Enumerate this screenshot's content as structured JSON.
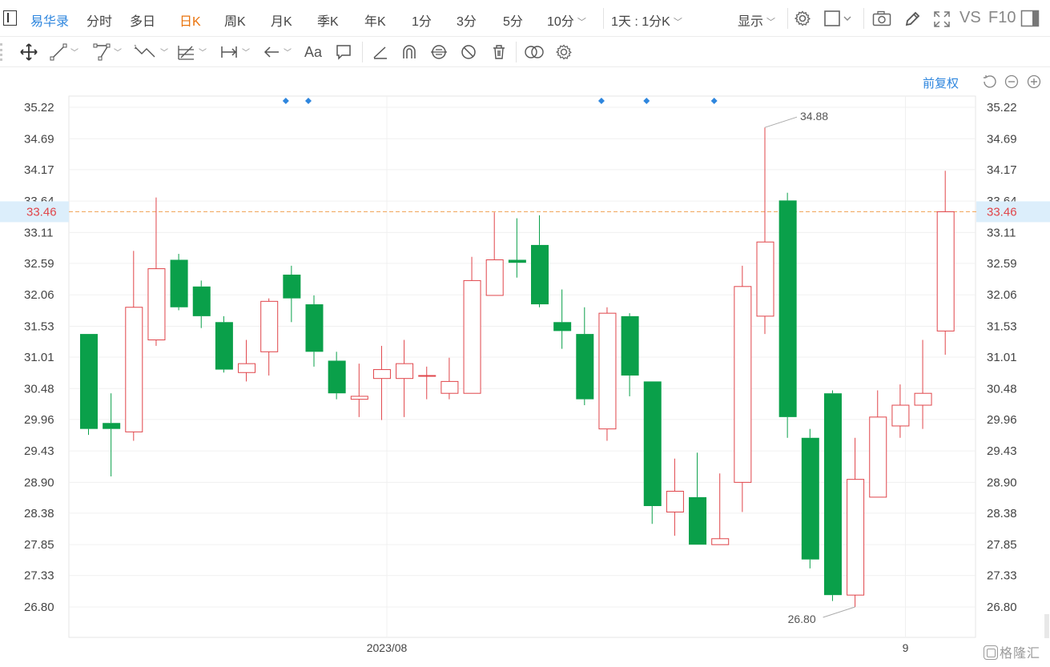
{
  "toolbar": {
    "brand": "易华录",
    "periods": [
      "分时",
      "多日",
      "日K",
      "周K",
      "月K",
      "季K",
      "年K",
      "1分",
      "3分",
      "5分",
      "10分"
    ],
    "active_period": "日K",
    "interval_select": "1天 : 1分K",
    "display_label": "显示",
    "vs_label": "VS",
    "f10_label": "F10"
  },
  "draw_tools": [
    "move-tool",
    "line-tool",
    "polyline-tool",
    "wave-tool",
    "fib-tool",
    "range-tool",
    "arrow-tool",
    "text-tool",
    "note-tool",
    "ruler-tool",
    "magnet-tool",
    "link-tool",
    "hide-drawings-tool",
    "delete-drawings-tool",
    "compare-tool",
    "settings-tool"
  ],
  "adjust_label": "前复权",
  "watermark": "格隆汇",
  "colors": {
    "up": "#e0454a",
    "down": "#0aa04a",
    "price_line": "#f0a050",
    "marker": "#2e86de",
    "axis_text": "#444444",
    "grid": "#f0f0f0",
    "accent": "#e9730c"
  },
  "chart_data": {
    "type": "candlestick",
    "ylim": [
      26.55,
      35.5
    ],
    "y_ticks": [
      35.22,
      34.69,
      34.17,
      33.64,
      33.11,
      32.59,
      32.06,
      31.53,
      31.01,
      30.48,
      29.96,
      29.43,
      28.9,
      28.38,
      27.85,
      27.33,
      26.8
    ],
    "x_labels": [
      {
        "label": "2023/08",
        "index": 14
      },
      {
        "label": "9",
        "index": 37
      }
    ],
    "current_price": 33.46,
    "annotations": [
      {
        "label": "34.88",
        "index": 30,
        "value": 34.88,
        "kind": "high"
      },
      {
        "label": "26.80",
        "index": 34,
        "value": 26.8,
        "kind": "low"
      }
    ],
    "event_marker_indices": [
      9,
      10,
      23,
      25,
      28
    ],
    "candles": [
      {
        "o": 31.4,
        "c": 29.8,
        "h": 31.4,
        "l": 29.7
      },
      {
        "o": 29.9,
        "c": 29.8,
        "h": 30.4,
        "l": 29.0
      },
      {
        "o": 29.75,
        "c": 31.85,
        "h": 32.8,
        "l": 29.6
      },
      {
        "o": 31.3,
        "c": 32.5,
        "h": 33.7,
        "l": 31.2
      },
      {
        "o": 32.65,
        "c": 31.85,
        "h": 32.75,
        "l": 31.8
      },
      {
        "o": 32.2,
        "c": 31.7,
        "h": 32.3,
        "l": 31.5
      },
      {
        "o": 31.6,
        "c": 30.8,
        "h": 31.7,
        "l": 30.75
      },
      {
        "o": 30.75,
        "c": 30.9,
        "h": 31.3,
        "l": 30.6
      },
      {
        "o": 31.1,
        "c": 31.95,
        "h": 32.0,
        "l": 30.7
      },
      {
        "o": 32.4,
        "c": 32.0,
        "h": 32.55,
        "l": 31.6
      },
      {
        "o": 31.9,
        "c": 31.1,
        "h": 32.05,
        "l": 30.85
      },
      {
        "o": 30.95,
        "c": 30.4,
        "h": 31.1,
        "l": 30.3
      },
      {
        "o": 30.3,
        "c": 30.35,
        "h": 30.9,
        "l": 30.0
      },
      {
        "o": 30.65,
        "c": 30.8,
        "h": 31.2,
        "l": 29.95
      },
      {
        "o": 30.65,
        "c": 30.9,
        "h": 31.3,
        "l": 30.0
      },
      {
        "o": 30.7,
        "c": 30.7,
        "h": 30.85,
        "l": 30.3
      },
      {
        "o": 30.4,
        "c": 30.6,
        "h": 31.0,
        "l": 30.3
      },
      {
        "o": 30.4,
        "c": 32.3,
        "h": 32.7,
        "l": 30.4
      },
      {
        "o": 32.05,
        "c": 32.65,
        "h": 33.45,
        "l": 32.05
      },
      {
        "o": 32.65,
        "c": 32.6,
        "h": 33.35,
        "l": 32.35
      },
      {
        "o": 32.9,
        "c": 31.9,
        "h": 33.4,
        "l": 31.85
      },
      {
        "o": 31.6,
        "c": 31.45,
        "h": 32.15,
        "l": 31.15
      },
      {
        "o": 31.4,
        "c": 30.3,
        "h": 31.85,
        "l": 30.2
      },
      {
        "o": 29.8,
        "c": 31.75,
        "h": 31.85,
        "l": 29.6
      },
      {
        "o": 31.7,
        "c": 30.7,
        "h": 31.75,
        "l": 30.35
      },
      {
        "o": 30.6,
        "c": 28.5,
        "h": 30.6,
        "l": 28.2
      },
      {
        "o": 28.4,
        "c": 28.75,
        "h": 29.3,
        "l": 28.0
      },
      {
        "o": 28.65,
        "c": 27.85,
        "h": 29.4,
        "l": 27.85
      },
      {
        "o": 27.85,
        "c": 27.95,
        "h": 29.05,
        "l": 27.85
      },
      {
        "o": 28.9,
        "c": 32.2,
        "h": 32.55,
        "l": 28.4
      },
      {
        "o": 31.7,
        "c": 32.95,
        "h": 34.88,
        "l": 31.4
      },
      {
        "o": 33.65,
        "c": 30.0,
        "h": 33.78,
        "l": 29.65
      },
      {
        "o": 29.65,
        "c": 27.6,
        "h": 29.8,
        "l": 27.45
      },
      {
        "o": 30.4,
        "c": 27.0,
        "h": 30.45,
        "l": 26.9
      },
      {
        "o": 27.0,
        "c": 28.95,
        "h": 29.65,
        "l": 26.8
      },
      {
        "o": 28.65,
        "c": 30.0,
        "h": 30.45,
        "l": 28.65
      },
      {
        "o": 29.85,
        "c": 30.2,
        "h": 30.55,
        "l": 29.65
      },
      {
        "o": 30.2,
        "c": 30.4,
        "h": 31.3,
        "l": 29.8
      },
      {
        "o": 31.45,
        "c": 33.46,
        "h": 34.15,
        "l": 31.05
      }
    ]
  }
}
